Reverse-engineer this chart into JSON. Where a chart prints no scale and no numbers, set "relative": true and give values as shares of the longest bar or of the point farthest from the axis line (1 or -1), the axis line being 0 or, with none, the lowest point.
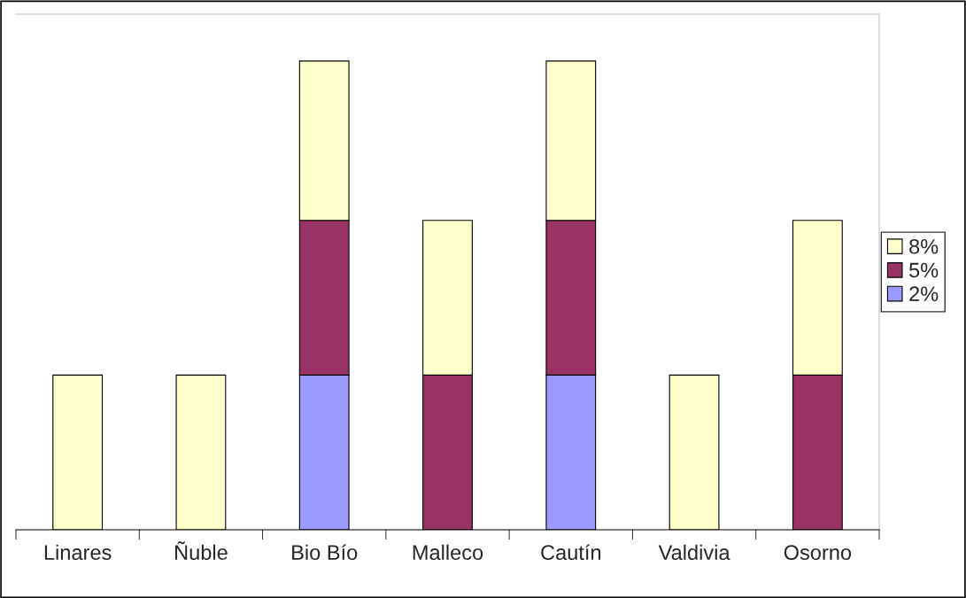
{
  "chart_data": {
    "type": "bar",
    "stacked": true,
    "relative": true,
    "categories": [
      "Linares",
      "Ñuble",
      "Bio Bío",
      "Malleco",
      "Cautín",
      "Valdivia",
      "Osorno"
    ],
    "series": [
      {
        "name": "2%",
        "color": "#9999ff",
        "values": [
          null,
          null,
          0.33,
          null,
          0.33,
          null,
          null
        ]
      },
      {
        "name": "5%",
        "color": "#993366",
        "values": [
          null,
          null,
          0.33,
          0.33,
          0.33,
          null,
          0.33
        ]
      },
      {
        "name": "8%",
        "color": "#ffffcc",
        "values": [
          0.33,
          0.33,
          0.34,
          0.33,
          0.34,
          0.33,
          0.33
        ]
      }
    ],
    "legend": "right",
    "grid": false
  }
}
